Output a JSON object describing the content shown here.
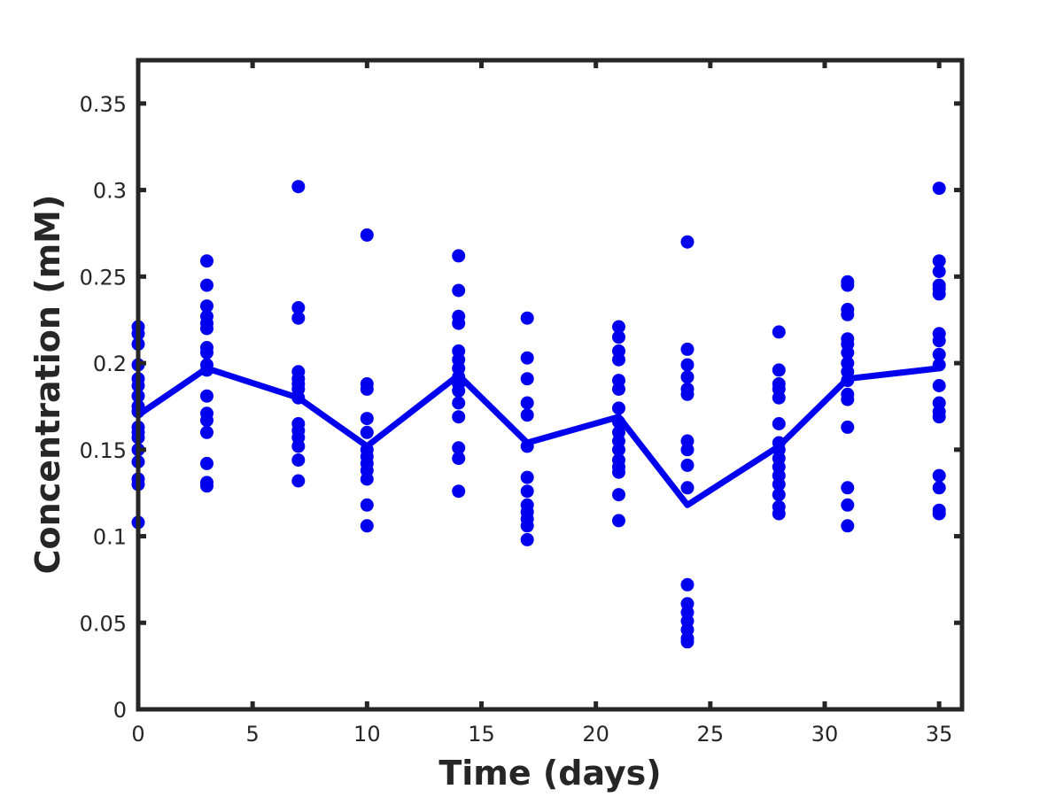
{
  "chart_data": {
    "type": "scatter",
    "xlabel": "Time (days)",
    "ylabel": "Concentration (mM)",
    "xlim": [
      0,
      36
    ],
    "ylim": [
      0,
      0.375
    ],
    "xticks": [
      0,
      5,
      10,
      15,
      20,
      25,
      30,
      35
    ],
    "xtick_labels": [
      "0",
      "5",
      "10",
      "15",
      "20",
      "25",
      "30",
      "35"
    ],
    "yticks": [
      0,
      0.05,
      0.1,
      0.15,
      0.2,
      0.25,
      0.3,
      0.35
    ],
    "ytick_labels": [
      "0",
      "0.05",
      "0.1",
      "0.15",
      "0.2",
      "0.25",
      "0.3",
      "0.35"
    ],
    "grid": false,
    "color": "#0000ee",
    "frame_color": "#262626",
    "points": [
      {
        "x": 0,
        "y": [
          0.221,
          0.217,
          0.211,
          0.199,
          0.191,
          0.187,
          0.181,
          0.175,
          0.172,
          0.163,
          0.16,
          0.157,
          0.15,
          0.143,
          0.133,
          0.13,
          0.108
        ]
      },
      {
        "x": 3,
        "y": [
          0.259,
          0.245,
          0.233,
          0.227,
          0.223,
          0.22,
          0.209,
          0.206,
          0.199,
          0.196,
          0.181,
          0.171,
          0.167,
          0.16,
          0.142,
          0.131,
          0.129
        ]
      },
      {
        "x": 7,
        "y": [
          0.302,
          0.232,
          0.226,
          0.195,
          0.191,
          0.188,
          0.185,
          0.18,
          0.165,
          0.161,
          0.157,
          0.152,
          0.144,
          0.132
        ]
      },
      {
        "x": 10,
        "y": [
          0.274,
          0.188,
          0.185,
          0.168,
          0.16,
          0.15,
          0.146,
          0.142,
          0.138,
          0.133,
          0.118,
          0.106
        ]
      },
      {
        "x": 14,
        "y": [
          0.262,
          0.242,
          0.227,
          0.223,
          0.207,
          0.202,
          0.197,
          0.192,
          0.188,
          0.184,
          0.177,
          0.169,
          0.151,
          0.145,
          0.126
        ]
      },
      {
        "x": 17,
        "y": [
          0.226,
          0.203,
          0.191,
          0.177,
          0.17,
          0.152,
          0.134,
          0.126,
          0.118,
          0.114,
          0.11,
          0.106,
          0.098
        ]
      },
      {
        "x": 21,
        "y": [
          0.221,
          0.215,
          0.207,
          0.202,
          0.19,
          0.185,
          0.174,
          0.166,
          0.16,
          0.155,
          0.15,
          0.144,
          0.14,
          0.137,
          0.124,
          0.109
        ]
      },
      {
        "x": 24,
        "y": [
          0.27,
          0.208,
          0.199,
          0.192,
          0.185,
          0.182,
          0.155,
          0.15,
          0.141,
          0.128,
          0.072,
          0.061,
          0.056,
          0.051,
          0.046,
          0.041,
          0.039
        ]
      },
      {
        "x": 28,
        "y": [
          0.218,
          0.196,
          0.188,
          0.185,
          0.18,
          0.165,
          0.154,
          0.15,
          0.145,
          0.14,
          0.135,
          0.13,
          0.124,
          0.117,
          0.113
        ]
      },
      {
        "x": 31,
        "y": [
          0.247,
          0.245,
          0.231,
          0.228,
          0.214,
          0.211,
          0.206,
          0.2,
          0.195,
          0.19,
          0.182,
          0.179,
          0.163,
          0.128,
          0.118,
          0.106
        ]
      },
      {
        "x": 35,
        "y": [
          0.301,
          0.259,
          0.253,
          0.245,
          0.243,
          0.24,
          0.217,
          0.213,
          0.205,
          0.199,
          0.187,
          0.177,
          0.172,
          0.169,
          0.135,
          0.128,
          0.115,
          0.113
        ]
      }
    ],
    "mean_line": {
      "x": [
        0,
        3,
        7,
        10,
        14,
        17,
        21,
        24,
        28,
        31,
        35
      ],
      "y": [
        0.17,
        0.197,
        0.18,
        0.152,
        0.193,
        0.154,
        0.169,
        0.118,
        0.152,
        0.191,
        0.197
      ]
    }
  }
}
